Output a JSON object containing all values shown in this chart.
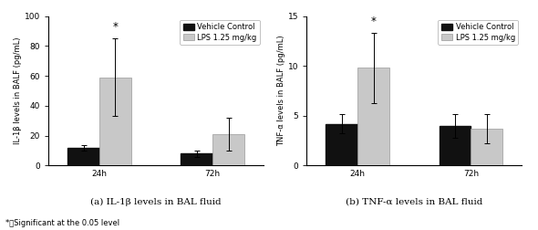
{
  "left_chart": {
    "title": "(a) IL-1β levels in BAL fluid",
    "ylabel": "IL-1β levels in BALF (pg/mL)",
    "ylim": [
      0,
      100
    ],
    "yticks": [
      0,
      20,
      40,
      60,
      80,
      100
    ],
    "groups": [
      "24h",
      "72h"
    ],
    "vehicle_means": [
      12,
      8
    ],
    "vehicle_errors": [
      2,
      2
    ],
    "lps_means": [
      59,
      21
    ],
    "lps_errors": [
      26,
      11
    ],
    "sig_group": 0
  },
  "right_chart": {
    "title": "(b) TNF-α levels in BAL fluid",
    "ylabel": "TNF-α levels in BALF (pg/mL)",
    "ylim": [
      0,
      15
    ],
    "yticks": [
      0,
      5,
      10,
      15
    ],
    "groups": [
      "24h",
      "72h"
    ],
    "vehicle_means": [
      4.2,
      4.0
    ],
    "vehicle_errors": [
      1.0,
      1.2
    ],
    "lps_means": [
      9.8,
      3.7
    ],
    "lps_errors": [
      3.5,
      1.5
    ],
    "sig_group": 0
  },
  "bar_width": 0.28,
  "vehicle_color": "#111111",
  "lps_color": "#c8c8c8",
  "lps_edge_color": "#999999",
  "legend_labels": [
    "Vehicle Control",
    "LPS 1.25 mg/kg"
  ],
  "footnote": "*：Significant at the 0.05 level",
  "errorbar_capsize": 2,
  "fontsize": 6.5,
  "legend_fontsize": 6,
  "title_fontsize": 7.5
}
